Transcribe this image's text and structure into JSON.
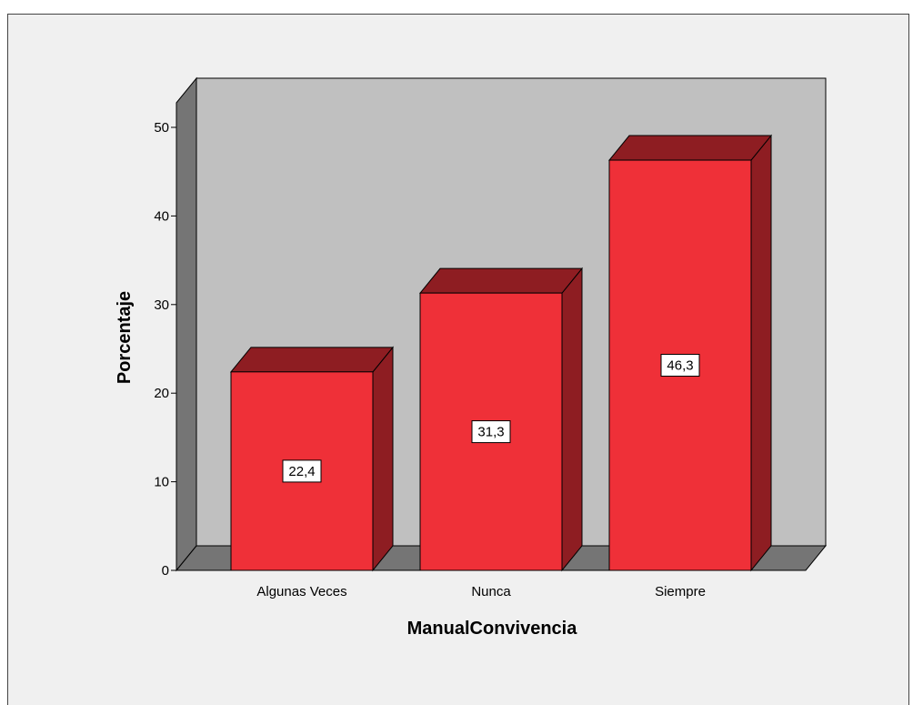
{
  "chart_data": {
    "type": "bar",
    "style": "3d",
    "categories": [
      "Algunas Veces",
      "Nunca",
      "Siempre"
    ],
    "values": [
      22.4,
      31.3,
      46.3
    ],
    "data_labels": [
      "22,4",
      "31,3",
      "46,3"
    ],
    "xlabel": "ManualConvivencia",
    "ylabel": "Porcentaje",
    "ylim": [
      0,
      50
    ],
    "yticks": [
      0,
      10,
      20,
      30,
      40,
      50
    ],
    "grid": false,
    "legend": "none",
    "colors": {
      "bar_front": "#ef3038",
      "bar_top": "#8e1d22",
      "bar_side": "#8e1d22",
      "back_wall": "#c0c0c0",
      "floor": "#757575",
      "left_wall": "#757575",
      "frame_background": "#f0f0f0"
    }
  }
}
